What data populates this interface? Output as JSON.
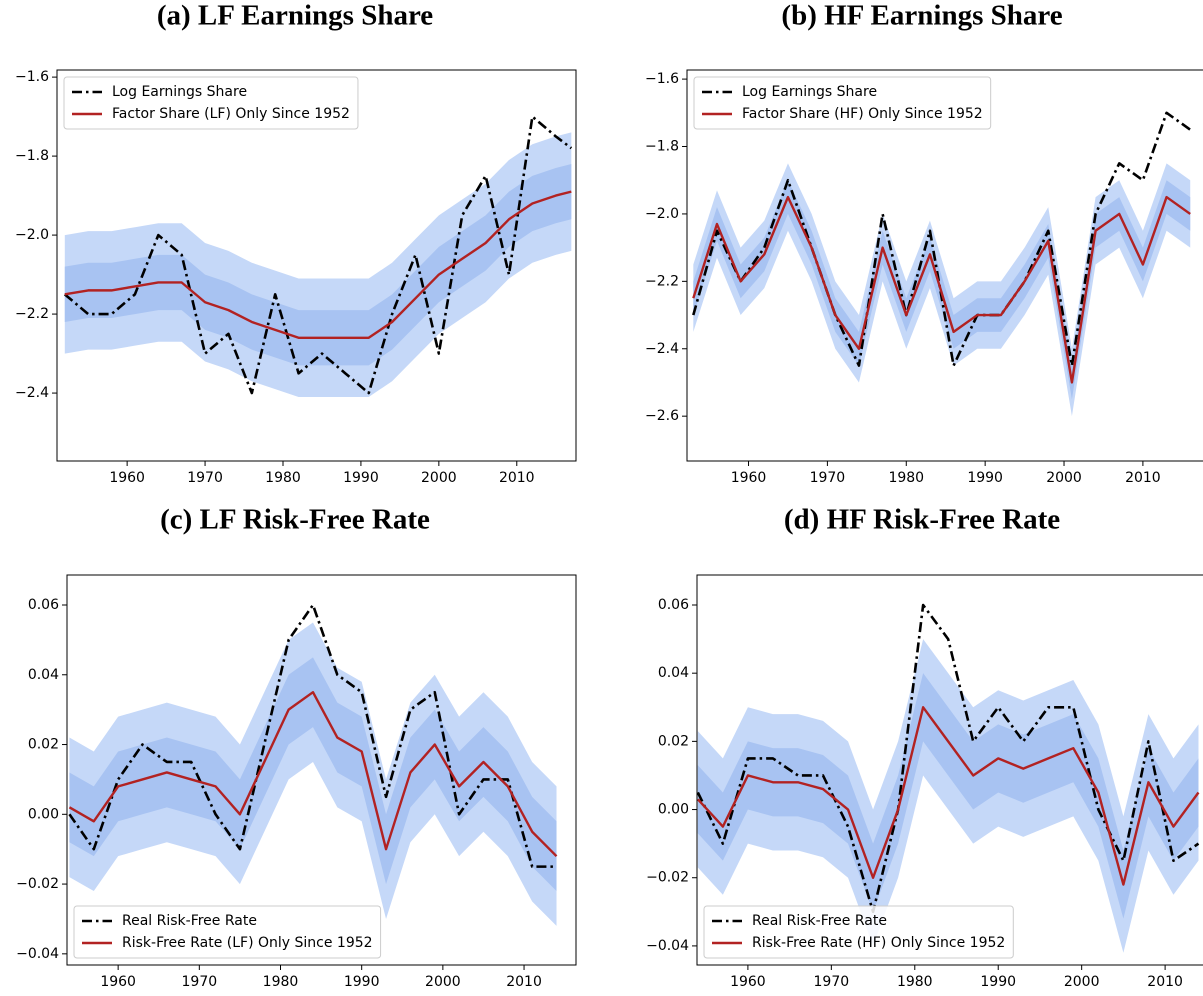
{
  "chart_data": [
    {
      "type": "line",
      "title": "(a) LF Earnings Share",
      "legend": "upper left",
      "x": [
        1952,
        1955,
        1958,
        1961,
        1964,
        1967,
        1970,
        1973,
        1976,
        1979,
        1982,
        1985,
        1988,
        1991,
        1994,
        1997,
        2000,
        2003,
        2006,
        2009,
        2012,
        2015,
        2017
      ],
      "xlim": [
        1951,
        2017.6
      ],
      "ylim": [
        -2.572,
        -1.582
      ],
      "xticks": [
        1960,
        1970,
        1980,
        1990,
        2000,
        2010
      ],
      "yticks": [
        {
          "value": -1.6,
          "label": "−1.6"
        },
        {
          "value": -1.8,
          "label": "−1.8"
        },
        {
          "value": -2.0,
          "label": "−2.0"
        },
        {
          "value": -2.2,
          "label": "−2.2"
        },
        {
          "value": -2.4,
          "label": "−2.4"
        }
      ],
      "bands": [
        {
          "color": "#c5d8f8",
          "lower": [
            -2.3,
            -2.29,
            -2.29,
            -2.28,
            -2.27,
            -2.27,
            -2.32,
            -2.34,
            -2.37,
            -2.39,
            -2.41,
            -2.41,
            -2.41,
            -2.41,
            -2.37,
            -2.31,
            -2.25,
            -2.21,
            -2.17,
            -2.11,
            -2.07,
            -2.05,
            -2.04
          ],
          "upper": [
            -2.0,
            -1.99,
            -1.99,
            -1.98,
            -1.97,
            -1.97,
            -2.02,
            -2.04,
            -2.07,
            -2.09,
            -2.11,
            -2.11,
            -2.11,
            -2.11,
            -2.07,
            -2.01,
            -1.95,
            -1.91,
            -1.87,
            -1.81,
            -1.77,
            -1.75,
            -1.74
          ]
        },
        {
          "color": "#a8c3f2",
          "lower": [
            -2.22,
            -2.21,
            -2.21,
            -2.2,
            -2.19,
            -2.19,
            -2.24,
            -2.26,
            -2.29,
            -2.31,
            -2.33,
            -2.33,
            -2.33,
            -2.33,
            -2.29,
            -2.23,
            -2.17,
            -2.13,
            -2.09,
            -2.03,
            -1.99,
            -1.97,
            -1.96
          ],
          "upper": [
            -2.08,
            -2.07,
            -2.07,
            -2.06,
            -2.05,
            -2.05,
            -2.1,
            -2.12,
            -2.15,
            -2.17,
            -2.19,
            -2.19,
            -2.19,
            -2.19,
            -2.15,
            -2.09,
            -2.03,
            -1.99,
            -1.95,
            -1.89,
            -1.85,
            -1.83,
            -1.82
          ]
        }
      ],
      "series": [
        {
          "name": "Log Earnings Share",
          "color": "#000000",
          "style": "dashdot",
          "values": [
            -2.15,
            -2.2,
            -2.2,
            -2.15,
            -2.0,
            -2.05,
            -2.3,
            -2.25,
            -2.4,
            -2.15,
            -2.35,
            -2.3,
            -2.35,
            -2.4,
            -2.2,
            -2.05,
            -2.3,
            -1.95,
            -1.85,
            -2.1,
            -1.7,
            -1.75,
            -1.78
          ]
        },
        {
          "name": "Factor Share (LF) Only Since 1952",
          "color": "#b22222",
          "style": "solid",
          "values": [
            -2.15,
            -2.14,
            -2.14,
            -2.13,
            -2.12,
            -2.12,
            -2.17,
            -2.19,
            -2.22,
            -2.24,
            -2.26,
            -2.26,
            -2.26,
            -2.26,
            -2.22,
            -2.16,
            -2.1,
            -2.06,
            -2.02,
            -1.96,
            -1.92,
            -1.9,
            -1.89
          ]
        }
      ]
    },
    {
      "type": "line",
      "title": "(b) HF Earnings Share",
      "legend": "upper left",
      "x": [
        1953,
        1956,
        1959,
        1962,
        1965,
        1968,
        1971,
        1974,
        1977,
        1980,
        1983,
        1986,
        1989,
        1992,
        1995,
        1998,
        2001,
        2004,
        2007,
        2010,
        2013,
        2016
      ],
      "xlim": [
        1952.2,
        2018
      ],
      "ylim": [
        -2.733,
        -1.573
      ],
      "xticks": [
        1960,
        1970,
        1980,
        1990,
        2000,
        2010
      ],
      "yticks": [
        {
          "value": -1.6,
          "label": "−1.6"
        },
        {
          "value": -1.8,
          "label": "−1.8"
        },
        {
          "value": -2.0,
          "label": "−2.0"
        },
        {
          "value": -2.2,
          "label": "−2.2"
        },
        {
          "value": -2.4,
          "label": "−2.4"
        },
        {
          "value": -2.6,
          "label": "−2.6"
        }
      ],
      "bands": [
        {
          "color": "#c5d8f8",
          "lower": [
            -2.35,
            -2.13,
            -2.3,
            -2.22,
            -2.05,
            -2.2,
            -2.4,
            -2.5,
            -2.2,
            -2.4,
            -2.22,
            -2.45,
            -2.4,
            -2.4,
            -2.3,
            -2.18,
            -2.6,
            -2.15,
            -2.1,
            -2.25,
            -2.05,
            -2.1
          ],
          "upper": [
            -2.15,
            -1.93,
            -2.1,
            -2.02,
            -1.85,
            -2.0,
            -2.2,
            -2.3,
            -2.0,
            -2.2,
            -2.02,
            -2.25,
            -2.2,
            -2.2,
            -2.1,
            -1.98,
            -2.4,
            -1.95,
            -1.9,
            -2.05,
            -1.85,
            -1.9
          ]
        },
        {
          "color": "#a8c3f2",
          "lower": [
            -2.3,
            -2.08,
            -2.25,
            -2.17,
            -2.0,
            -2.15,
            -2.35,
            -2.45,
            -2.15,
            -2.35,
            -2.17,
            -2.4,
            -2.35,
            -2.35,
            -2.25,
            -2.13,
            -2.55,
            -2.1,
            -2.05,
            -2.2,
            -2.0,
            -2.05
          ],
          "upper": [
            -2.2,
            -1.98,
            -2.15,
            -2.07,
            -1.9,
            -2.05,
            -2.25,
            -2.35,
            -2.05,
            -2.25,
            -2.07,
            -2.3,
            -2.25,
            -2.25,
            -2.15,
            -2.03,
            -2.45,
            -2.0,
            -1.95,
            -2.1,
            -1.9,
            -1.95
          ]
        }
      ],
      "series": [
        {
          "name": "Log Earnings Share",
          "color": "#000000",
          "style": "dashdot",
          "values": [
            -2.3,
            -2.05,
            -2.2,
            -2.1,
            -1.9,
            -2.1,
            -2.3,
            -2.45,
            -2.0,
            -2.3,
            -2.05,
            -2.45,
            -2.3,
            -2.3,
            -2.2,
            -2.05,
            -2.45,
            -2.0,
            -1.85,
            -1.9,
            -1.7,
            -1.75
          ]
        },
        {
          "name": "Factor Share (HF) Only Since 1952",
          "color": "#b22222",
          "style": "solid",
          "values": [
            -2.25,
            -2.03,
            -2.2,
            -2.12,
            -1.95,
            -2.1,
            -2.3,
            -2.4,
            -2.1,
            -2.3,
            -2.12,
            -2.35,
            -2.3,
            -2.3,
            -2.2,
            -2.08,
            -2.5,
            -2.05,
            -2.0,
            -2.15,
            -1.95,
            -2.0
          ]
        }
      ]
    },
    {
      "type": "line",
      "title": "(c) LF Risk-Free Rate",
      "legend": "lower left",
      "x": [
        1954,
        1957,
        1960,
        1963,
        1966,
        1969,
        1972,
        1975,
        1978,
        1981,
        1984,
        1987,
        1990,
        1993,
        1996,
        1999,
        2002,
        2005,
        2008,
        2011,
        2014
      ],
      "xlim": [
        1953.7,
        2016.4
      ],
      "ylim": [
        -0.0432,
        0.0686
      ],
      "xticks": [
        1960,
        1970,
        1980,
        1990,
        2000,
        2010
      ],
      "yticks": [
        0.06,
        0.04,
        0.02,
        {
          "value": 0,
          "label": "0.00"
        },
        {
          "value": -0.02,
          "label": "−0.02"
        },
        {
          "value": -0.04,
          "label": "−0.04"
        }
      ],
      "bands": [
        {
          "color": "#c5d8f8",
          "lower": [
            -0.018,
            -0.022,
            -0.012,
            -0.01,
            -0.008,
            -0.01,
            -0.012,
            -0.02,
            -0.005,
            0.01,
            0.015,
            0.002,
            -0.002,
            -0.03,
            -0.008,
            0.0,
            -0.012,
            -0.005,
            -0.012,
            -0.025,
            -0.032
          ],
          "upper": [
            0.022,
            0.018,
            0.028,
            0.03,
            0.032,
            0.03,
            0.028,
            0.02,
            0.035,
            0.05,
            0.055,
            0.042,
            0.038,
            0.01,
            0.032,
            0.04,
            0.028,
            0.035,
            0.028,
            0.015,
            0.008
          ]
        },
        {
          "color": "#a8c3f2",
          "lower": [
            -0.008,
            -0.012,
            -0.002,
            0.0,
            0.002,
            0.0,
            -0.002,
            -0.01,
            0.005,
            0.02,
            0.025,
            0.012,
            0.008,
            -0.02,
            0.002,
            0.01,
            -0.002,
            0.005,
            -0.002,
            -0.015,
            -0.022
          ],
          "upper": [
            0.012,
            0.008,
            0.018,
            0.02,
            0.022,
            0.02,
            0.018,
            0.01,
            0.025,
            0.04,
            0.045,
            0.032,
            0.028,
            0.0,
            0.022,
            0.03,
            0.018,
            0.025,
            0.018,
            0.005,
            -0.002
          ]
        }
      ],
      "series": [
        {
          "name": "Real Risk-Free Rate",
          "color": "#000000",
          "style": "dashdot",
          "values": [
            0.0,
            -0.01,
            0.01,
            0.02,
            0.015,
            0.015,
            0.0,
            -0.01,
            0.02,
            0.05,
            0.06,
            0.04,
            0.035,
            0.005,
            0.03,
            0.035,
            0.0,
            0.01,
            0.01,
            -0.015,
            -0.015
          ]
        },
        {
          "name": "Risk-Free Rate (LF) Only Since 1952",
          "color": "#b22222",
          "style": "solid",
          "values": [
            0.002,
            -0.002,
            0.008,
            0.01,
            0.012,
            0.01,
            0.008,
            0.0,
            0.015,
            0.03,
            0.035,
            0.022,
            0.018,
            -0.01,
            0.012,
            0.02,
            0.008,
            0.015,
            0.008,
            -0.005,
            -0.012
          ]
        }
      ]
    },
    {
      "type": "line",
      "title": "(d) HF Risk-Free Rate",
      "legend": "lower left",
      "x": [
        1954,
        1957,
        1960,
        1963,
        1966,
        1969,
        1972,
        1975,
        1978,
        1981,
        1984,
        1987,
        1990,
        1993,
        1996,
        1999,
        2002,
        2005,
        2008,
        2011,
        2014
      ],
      "xlim": [
        1953.9,
        2015.5
      ],
      "ylim": [
        -0.0456,
        0.0688
      ],
      "xticks": [
        1960,
        1970,
        1980,
        1990,
        2000,
        2010
      ],
      "yticks": [
        0.06,
        0.04,
        0.02,
        {
          "value": 0,
          "label": "0.00"
        },
        {
          "value": -0.02,
          "label": "−0.02"
        },
        {
          "value": -0.04,
          "label": "−0.04"
        }
      ],
      "bands": [
        {
          "color": "#c5d8f8",
          "lower": [
            -0.017,
            -0.025,
            -0.01,
            -0.012,
            -0.012,
            -0.014,
            -0.02,
            -0.04,
            -0.02,
            0.01,
            0.0,
            -0.01,
            -0.005,
            -0.008,
            -0.005,
            -0.002,
            -0.015,
            -0.042,
            -0.012,
            -0.025,
            -0.015
          ],
          "upper": [
            0.023,
            0.015,
            0.03,
            0.028,
            0.028,
            0.026,
            0.02,
            0.0,
            0.02,
            0.05,
            0.04,
            0.03,
            0.035,
            0.032,
            0.035,
            0.038,
            0.025,
            -0.002,
            0.028,
            0.015,
            0.025
          ]
        },
        {
          "color": "#a8c3f2",
          "lower": [
            -0.007,
            -0.015,
            0.0,
            -0.002,
            -0.002,
            -0.004,
            -0.01,
            -0.03,
            -0.01,
            0.02,
            0.01,
            0.0,
            0.005,
            0.002,
            0.005,
            0.008,
            -0.005,
            -0.032,
            -0.002,
            -0.015,
            -0.005
          ],
          "upper": [
            0.013,
            0.005,
            0.02,
            0.018,
            0.018,
            0.016,
            0.01,
            -0.01,
            0.01,
            0.04,
            0.03,
            0.02,
            0.025,
            0.022,
            0.025,
            0.028,
            0.015,
            -0.012,
            0.018,
            0.005,
            0.015
          ]
        }
      ],
      "series": [
        {
          "name": "Real Risk-Free Rate",
          "color": "#000000",
          "style": "dashdot",
          "values": [
            0.005,
            -0.01,
            0.015,
            0.015,
            0.01,
            0.01,
            -0.005,
            -0.03,
            0.0,
            0.06,
            0.05,
            0.02,
            0.03,
            0.02,
            0.03,
            0.03,
            0.0,
            -0.015,
            0.02,
            -0.015,
            -0.01
          ]
        },
        {
          "name": "Risk-Free Rate (HF) Only Since 1952",
          "color": "#b22222",
          "style": "solid",
          "values": [
            0.003,
            -0.005,
            0.01,
            0.008,
            0.008,
            0.006,
            0.0,
            -0.02,
            0.0,
            0.03,
            0.02,
            0.01,
            0.015,
            0.012,
            0.015,
            0.018,
            0.005,
            -0.022,
            0.008,
            -0.005,
            0.005
          ]
        }
      ]
    }
  ]
}
